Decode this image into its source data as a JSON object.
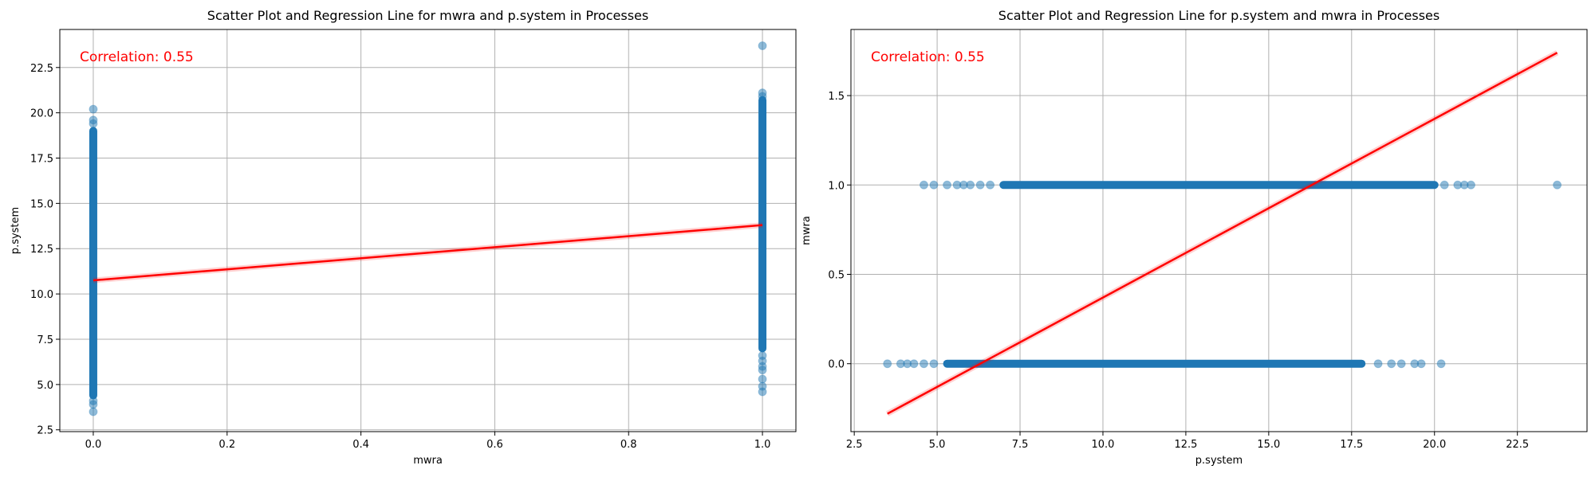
{
  "chart_data": [
    {
      "type": "scatter",
      "title": "Scatter Plot and Regression Line for mwra and p.system in Processes",
      "xlabel": "mwra",
      "ylabel": "p.system",
      "xlim": [
        -0.05,
        1.05
      ],
      "ylim": [
        2.4,
        24.6
      ],
      "xticks": [
        0.0,
        0.2,
        0.4,
        0.6,
        0.8,
        1.0
      ],
      "xtick_labels": [
        "0.0",
        "0.2",
        "0.4",
        "0.6",
        "0.8",
        "1.0"
      ],
      "yticks": [
        2.5,
        5.0,
        7.5,
        10.0,
        12.5,
        15.0,
        17.5,
        20.0,
        22.5
      ],
      "ytick_labels": [
        "2.5",
        "5.0",
        "7.5",
        "10.0",
        "12.5",
        "15.0",
        "17.5",
        "20.0",
        "22.5"
      ],
      "grid": true,
      "annotation": "Correlation: 0.55",
      "annotation_color": "#ff0000",
      "point_color": "#1f77b4",
      "line_color": "#ff0000",
      "clusters": [
        {
          "x": 0.0,
          "band": [
            4.4,
            19.0
          ],
          "outliers": [
            3.5,
            3.9,
            4.1,
            19.4,
            19.6,
            20.2
          ]
        },
        {
          "x": 1.0,
          "band": [
            7.0,
            20.7
          ],
          "outliers": [
            4.6,
            4.9,
            5.3,
            5.8,
            6.0,
            6.3,
            6.6,
            20.9,
            21.1,
            23.7
          ]
        }
      ],
      "regression": {
        "x": [
          0.0,
          1.0
        ],
        "y": [
          10.75,
          13.8
        ]
      }
    },
    {
      "type": "scatter",
      "title": "Scatter Plot and Regression Line for p.system and mwra in Processes",
      "xlabel": "p.system",
      "ylabel": "mwra",
      "xlim": [
        2.4,
        24.6
      ],
      "ylim": [
        -0.38,
        1.87
      ],
      "xticks": [
        2.5,
        5.0,
        7.5,
        10.0,
        12.5,
        15.0,
        17.5,
        20.0,
        22.5
      ],
      "xtick_labels": [
        "2.5",
        "5.0",
        "7.5",
        "10.0",
        "12.5",
        "15.0",
        "17.5",
        "20.0",
        "22.5"
      ],
      "yticks": [
        0.0,
        0.5,
        1.0,
        1.5
      ],
      "ytick_labels": [
        "0.0",
        "0.5",
        "1.0",
        "1.5"
      ],
      "grid": true,
      "annotation": "Correlation: 0.55",
      "annotation_color": "#ff0000",
      "point_color": "#1f77b4",
      "line_color": "#ff0000",
      "clusters": [
        {
          "y": 0.0,
          "band": [
            5.3,
            17.8
          ],
          "outliers": [
            3.5,
            3.9,
            4.1,
            4.3,
            4.6,
            4.9,
            18.3,
            18.7,
            19.0,
            19.4,
            19.6,
            20.2
          ]
        },
        {
          "y": 1.0,
          "band": [
            7.0,
            20.0
          ],
          "outliers": [
            4.6,
            4.9,
            5.3,
            5.6,
            5.8,
            6.0,
            6.3,
            6.6,
            20.3,
            20.7,
            20.9,
            21.1,
            23.7
          ]
        }
      ],
      "regression": {
        "x": [
          3.5,
          23.7
        ],
        "y": [
          -0.28,
          1.74
        ]
      }
    }
  ]
}
